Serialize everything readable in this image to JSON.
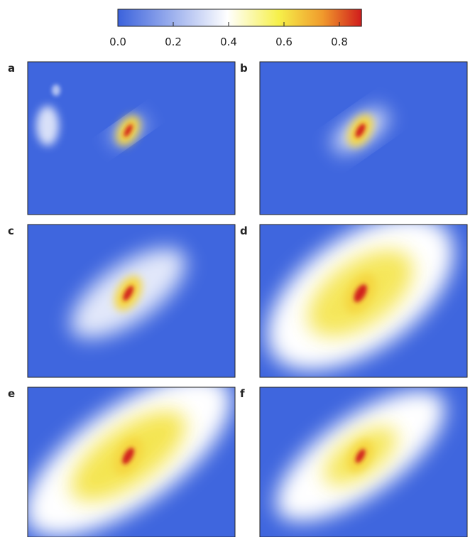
{
  "chart_data": {
    "type": "heatmap",
    "colorbar": {
      "clim": [
        0,
        0.88
      ],
      "ticks": [
        {
          "value": 0,
          "label": "0.0"
        },
        {
          "value": 0.2,
          "label": "0.2"
        },
        {
          "value": 0.4,
          "label": "0.4"
        },
        {
          "value": 0.6,
          "label": "0.6"
        },
        {
          "value": 0.8,
          "label": "0.8"
        }
      ],
      "colors": [
        "#3b62dc",
        "#ffffff",
        "#f6f04a",
        "#f09a2c",
        "#d01c1c"
      ]
    },
    "panels": [
      {
        "label": "a"
      },
      {
        "label": "b"
      },
      {
        "label": "c"
      },
      {
        "label": "d"
      },
      {
        "label": "e"
      },
      {
        "label": "f"
      }
    ]
  }
}
